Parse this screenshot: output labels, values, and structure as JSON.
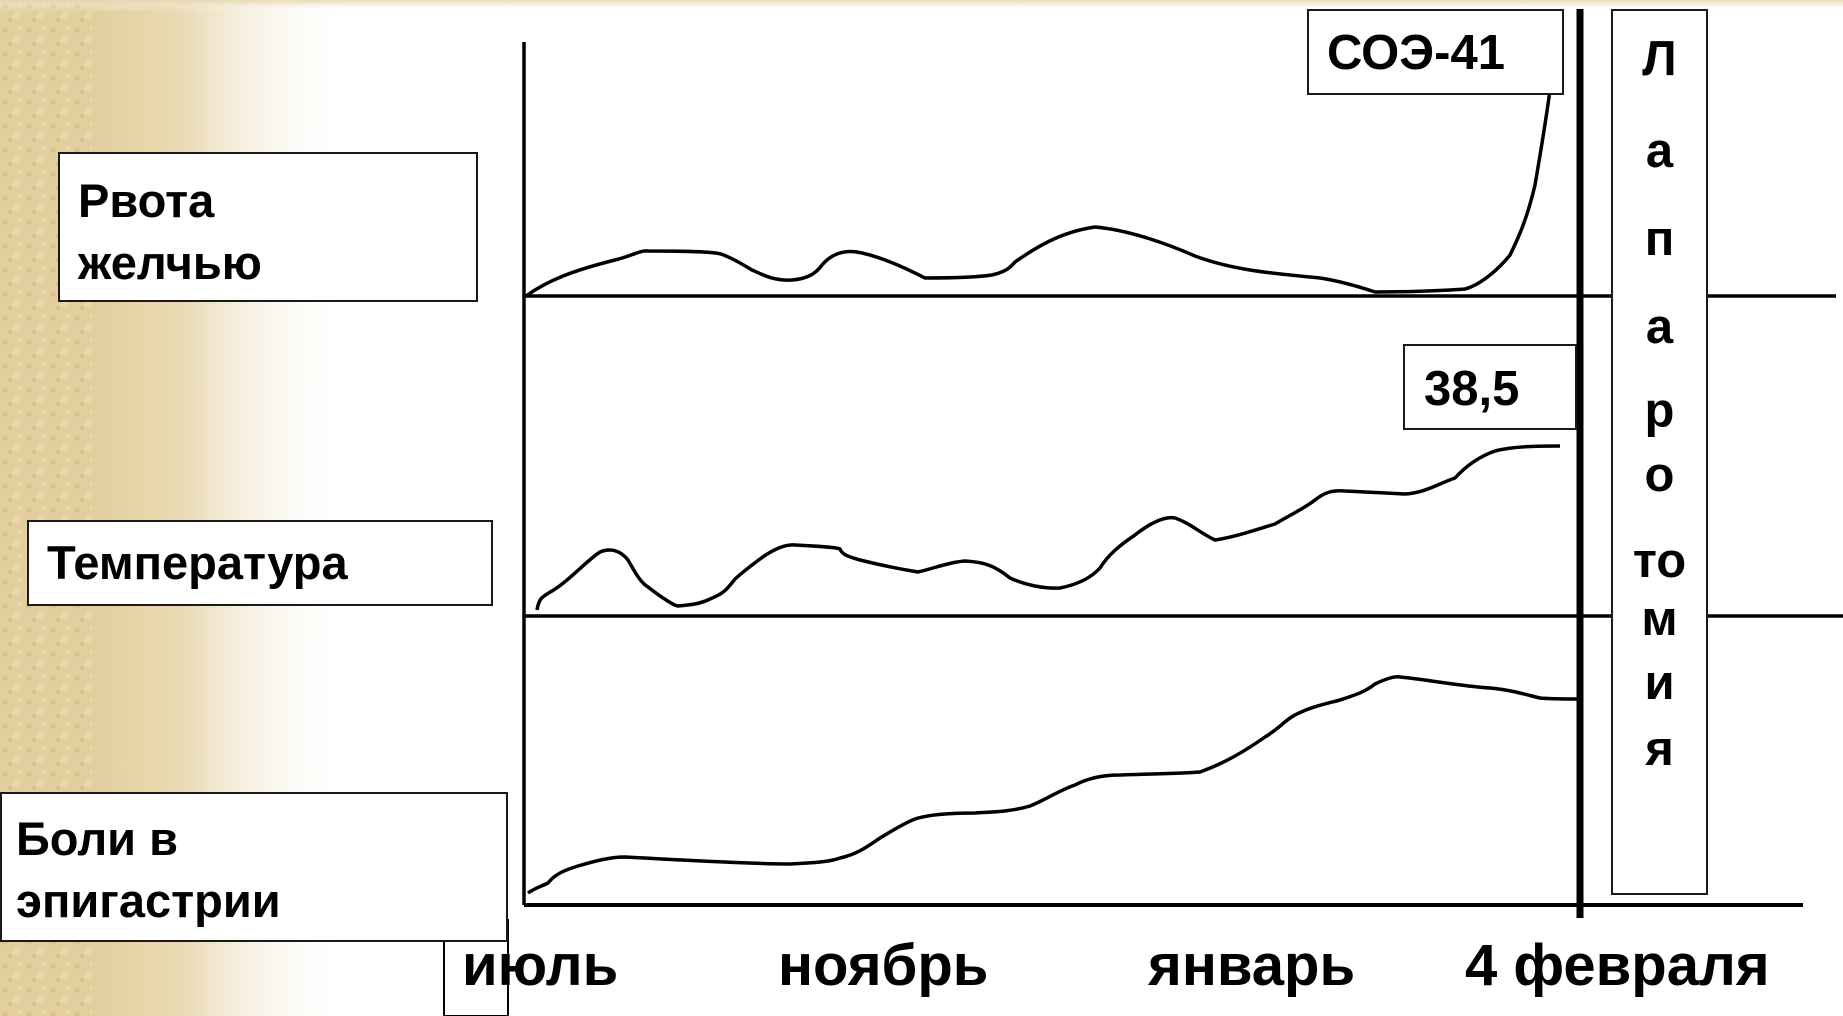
{
  "labels": {
    "vomit": "Рвота\nжелчью",
    "temperature": "Температура",
    "pain": "Боли в\nэпигастрии"
  },
  "annotations": {
    "esr": "СОЭ-41",
    "temperature_peak": "38,5",
    "laparotomy_letters": [
      "Л",
      "а",
      "п",
      "а",
      "р",
      "о",
      "то",
      "м",
      "и",
      "я"
    ]
  },
  "timeline": {
    "months": [
      "июль",
      "ноябрь",
      "январь",
      "4 февраля"
    ]
  },
  "colors": {
    "ink": "#000000",
    "paper": "#ffffff",
    "parchment": "#e3cf9e"
  }
}
